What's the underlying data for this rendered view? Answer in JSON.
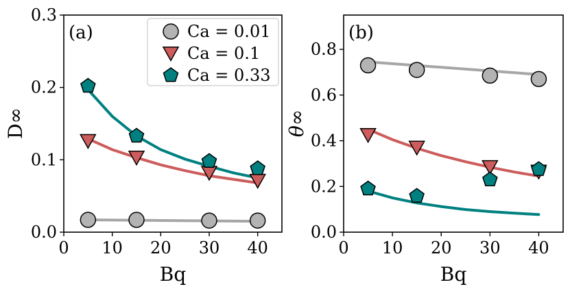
{
  "chart_data": [
    {
      "type": "scatter",
      "panel_label": "(a)",
      "xlabel": "Bq",
      "ylabel": "D∞",
      "xlim": [
        0,
        45
      ],
      "ylim": [
        0,
        0.3
      ],
      "xticks": [
        0,
        10,
        20,
        30,
        40
      ],
      "yticks": [
        0.0,
        0.1,
        0.2,
        0.3
      ],
      "xtick_labels": [
        "0",
        "10",
        "20",
        "30",
        "40"
      ],
      "ytick_labels": [
        "0.0",
        "0.1",
        "0.2",
        "0.3"
      ],
      "legend_position": "top-right",
      "series": [
        {
          "name": "Ca = 0.01",
          "marker": "circle",
          "marker_color": "#b3b3b3",
          "line_color": "#a6a6a6",
          "x": [
            5,
            15,
            30,
            40
          ],
          "y": [
            0.017,
            0.017,
            0.016,
            0.016
          ],
          "fit": [
            [
              5,
              0.017
            ],
            [
              40,
              0.015
            ]
          ]
        },
        {
          "name": "Ca = 0.1",
          "marker": "triangle-down",
          "marker_color": "#cd5c5c",
          "line_color": "#cd5c5c",
          "x": [
            5,
            15,
            30,
            40
          ],
          "y": [
            0.126,
            0.103,
            0.082,
            0.071
          ],
          "fit": [
            [
              5,
              0.129
            ],
            [
              10,
              0.114
            ],
            [
              15,
              0.103
            ],
            [
              20,
              0.093
            ],
            [
              25,
              0.085
            ],
            [
              30,
              0.078
            ],
            [
              35,
              0.073
            ],
            [
              40,
              0.068
            ]
          ]
        },
        {
          "name": "Ca = 0.33",
          "marker": "pentagon",
          "marker_color": "#008080",
          "line_color": "#008080",
          "x": [
            5,
            15,
            30,
            40
          ],
          "y": [
            0.202,
            0.133,
            0.098,
            0.088
          ],
          "fit": [
            [
              5,
              0.197
            ],
            [
              10,
              0.16
            ],
            [
              15,
              0.133
            ],
            [
              20,
              0.114
            ],
            [
              25,
              0.101
            ],
            [
              30,
              0.091
            ],
            [
              35,
              0.082
            ],
            [
              40,
              0.075
            ]
          ]
        }
      ]
    },
    {
      "type": "scatter",
      "panel_label": "(b)",
      "xlabel": "Bq",
      "ylabel": "θ∞",
      "xlim": [
        0,
        45
      ],
      "ylim": [
        0,
        0.95
      ],
      "xticks": [
        0,
        10,
        20,
        30,
        40
      ],
      "yticks": [
        0.0,
        0.2,
        0.4,
        0.6,
        0.8
      ],
      "xtick_labels": [
        "0",
        "10",
        "20",
        "30",
        "40"
      ],
      "ytick_labels": [
        "0.0",
        "0.2",
        "0.4",
        "0.6",
        "0.8"
      ],
      "series": [
        {
          "name": "Ca = 0.01",
          "marker": "circle",
          "marker_color": "#b3b3b3",
          "line_color": "#a6a6a6",
          "x": [
            5,
            15,
            30,
            40
          ],
          "y": [
            0.73,
            0.71,
            0.685,
            0.67
          ],
          "fit": [
            [
              5,
              0.745
            ],
            [
              40,
              0.69
            ]
          ]
        },
        {
          "name": "Ca = 0.1",
          "marker": "triangle-down",
          "marker_color": "#cd5c5c",
          "line_color": "#cd5c5c",
          "x": [
            5,
            15,
            30,
            40
          ],
          "y": [
            0.425,
            0.37,
            0.285,
            0.265
          ],
          "fit": [
            [
              5,
              0.45
            ],
            [
              10,
              0.405
            ],
            [
              15,
              0.367
            ],
            [
              20,
              0.335
            ],
            [
              25,
              0.308
            ],
            [
              30,
              0.284
            ],
            [
              35,
              0.263
            ],
            [
              40,
              0.245
            ]
          ]
        },
        {
          "name": "Ca = 0.33",
          "marker": "pentagon",
          "marker_color": "#008080",
          "line_color": "#008080",
          "x": [
            5,
            15,
            30,
            40
          ],
          "y": [
            0.19,
            0.158,
            0.23,
            0.275
          ],
          "fit": [
            [
              5,
              0.18
            ],
            [
              10,
              0.15
            ],
            [
              15,
              0.128
            ],
            [
              20,
              0.112
            ],
            [
              25,
              0.099
            ],
            [
              30,
              0.09
            ],
            [
              35,
              0.083
            ],
            [
              40,
              0.077
            ]
          ]
        }
      ]
    }
  ]
}
